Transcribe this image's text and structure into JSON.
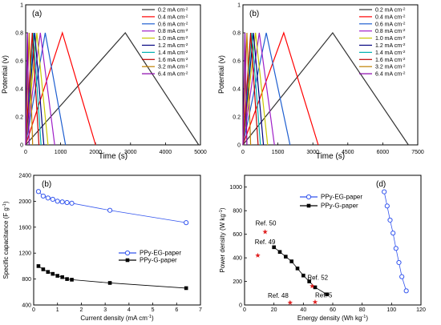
{
  "chart_data": [
    {
      "panel": "(a)",
      "type": "line",
      "xlabel": "Time (s)",
      "ylabel": "Potential (v)",
      "xlim": [
        0,
        5000
      ],
      "ylim": [
        0,
        1.0
      ],
      "xticks": [
        0,
        1000,
        2000,
        3000,
        4000,
        5000
      ],
      "yticks": [
        0.0,
        0.2,
        0.4,
        0.6,
        0.8,
        1.0
      ],
      "legend_position": "top-right",
      "series": [
        {
          "name": "0.2 mA cm",
          "color": "#333333",
          "x": [
            0,
            2850,
            4950
          ],
          "y": [
            0,
            0.8,
            0
          ]
        },
        {
          "name": "0.4 mA cm",
          "color": "#ff0000",
          "x": [
            0,
            1050,
            2000
          ],
          "y": [
            0,
            0.8,
            0
          ]
        },
        {
          "name": "0.6 mA cm",
          "color": "#1f5fd0",
          "x": [
            0,
            560,
            1140
          ],
          "y": [
            0,
            0.8,
            0
          ]
        },
        {
          "name": "0.8 mA cm",
          "color": "#a020c8",
          "x": [
            0,
            420,
            830
          ],
          "y": [
            0,
            0.8,
            0
          ]
        },
        {
          "name": "1.0 mA cm",
          "color": "#c8c800",
          "x": [
            0,
            320,
            640
          ],
          "y": [
            0,
            0.8,
            0
          ]
        },
        {
          "name": "1.2 mA cm",
          "color": "#000080",
          "x": [
            0,
            260,
            520
          ],
          "y": [
            0,
            0.8,
            0
          ]
        },
        {
          "name": "1.4 mA cm",
          "color": "#00b0b0",
          "x": [
            0,
            220,
            440
          ],
          "y": [
            0,
            0.8,
            0
          ]
        },
        {
          "name": "1.6 mA cm",
          "color": "#c00000",
          "x": [
            0,
            190,
            380
          ],
          "y": [
            0,
            0.8,
            0
          ]
        },
        {
          "name": "3.2 mA cm",
          "color": "#c08000",
          "x": [
            0,
            100,
            200
          ],
          "y": [
            0,
            0.8,
            0
          ]
        },
        {
          "name": "6.4 mA cm",
          "color": "#8800aa",
          "x": [
            0,
            50,
            100
          ],
          "y": [
            0,
            0.8,
            0
          ]
        }
      ]
    },
    {
      "panel": "(b)",
      "type": "line",
      "xlabel": "Time (s)",
      "ylabel": "Potential (v)",
      "xlim": [
        0,
        7500
      ],
      "ylim": [
        0,
        1.0
      ],
      "xticks": [
        0,
        1500,
        3000,
        4500,
        6000,
        7500
      ],
      "yticks": [
        0.0,
        0.2,
        0.4,
        0.6,
        0.8,
        1.0
      ],
      "legend_position": "top-right",
      "series": [
        {
          "name": "0.2 mA cm",
          "color": "#333333",
          "x": [
            0,
            3850,
            7100
          ],
          "y": [
            0,
            0.8,
            0
          ]
        },
        {
          "name": "0.4 mA cm",
          "color": "#ff0000",
          "x": [
            0,
            1750,
            3230
          ],
          "y": [
            0,
            0.8,
            0
          ]
        },
        {
          "name": "0.6 mA cm",
          "color": "#1f5fd0",
          "x": [
            0,
            1000,
            2020
          ],
          "y": [
            0,
            0.8,
            0
          ]
        },
        {
          "name": "0.8 mA cm",
          "color": "#a020c8",
          "x": [
            0,
            700,
            1350
          ],
          "y": [
            0,
            0.8,
            0
          ]
        },
        {
          "name": "1.0 mA cm",
          "color": "#c8c800",
          "x": [
            0,
            540,
            1060
          ],
          "y": [
            0,
            0.8,
            0
          ]
        },
        {
          "name": "1.2 mA cm",
          "color": "#000080",
          "x": [
            0,
            450,
            880
          ],
          "y": [
            0,
            0.8,
            0
          ]
        },
        {
          "name": "1.4 mA cm",
          "color": "#00b0b0",
          "x": [
            0,
            380,
            750
          ],
          "y": [
            0,
            0.8,
            0
          ]
        },
        {
          "name": "1.6 mA cm",
          "color": "#c00000",
          "x": [
            0,
            330,
            650
          ],
          "y": [
            0,
            0.8,
            0
          ]
        },
        {
          "name": "3.2 mA cm",
          "color": "#c08000",
          "x": [
            0,
            170,
            330
          ],
          "y": [
            0,
            0.8,
            0
          ]
        },
        {
          "name": "6.4 mA cm",
          "color": "#8800aa",
          "x": [
            0,
            85,
            170
          ],
          "y": [
            0,
            0.8,
            0
          ]
        }
      ]
    },
    {
      "panel": "(b)",
      "type": "line",
      "xlabel": "Current density (mA cm )",
      "ylabel": "Specific capacitance (F g )",
      "xlim": [
        0,
        7
      ],
      "ylim": [
        400,
        2400
      ],
      "xticks": [
        0,
        1,
        2,
        3,
        4,
        5,
        6,
        7
      ],
      "yticks": [
        400,
        800,
        1200,
        1600,
        2000,
        2400
      ],
      "legend_position": "center-right",
      "series": [
        {
          "name": "PPy-EG-paper",
          "color": "#3355ee",
          "marker": "circle",
          "x": [
            0.2,
            0.4,
            0.6,
            0.8,
            1.0,
            1.2,
            1.4,
            1.6,
            3.2,
            6.4
          ],
          "y": [
            2150,
            2080,
            2050,
            2030,
            2000,
            1990,
            1980,
            1970,
            1860,
            1670
          ]
        },
        {
          "name": "PPy-G-paper",
          "color": "#000000",
          "marker": "square",
          "x": [
            0.2,
            0.4,
            0.6,
            0.8,
            1.0,
            1.2,
            1.4,
            1.6,
            3.2,
            6.4
          ],
          "y": [
            1000,
            950,
            910,
            880,
            850,
            830,
            800,
            790,
            740,
            660
          ]
        }
      ]
    },
    {
      "panel": "(d)",
      "type": "scatter",
      "xlabel": "Energy density (Wh kg )",
      "ylabel": "Power density (W kg )",
      "xlim": [
        0,
        120
      ],
      "ylim": [
        0,
        1100
      ],
      "xticks": [
        0,
        20,
        40,
        60,
        80,
        100,
        120
      ],
      "yticks": [
        0,
        200,
        400,
        600,
        800,
        1000
      ],
      "legend_position": "top-left",
      "series": [
        {
          "name": "PPy-EG-paper",
          "color": "#3355ee",
          "marker": "circle",
          "x": [
            95,
            97,
            99,
            101,
            103,
            105,
            107,
            110
          ],
          "y": [
            960,
            840,
            720,
            610,
            480,
            360,
            240,
            120
          ]
        },
        {
          "name": "PPy-G-paper",
          "color": "#000000",
          "marker": "square",
          "x": [
            20,
            24,
            28,
            32,
            36,
            40,
            44,
            48,
            56
          ],
          "y": [
            490,
            450,
            410,
            370,
            310,
            250,
            200,
            150,
            90
          ]
        },
        {
          "name": "",
          "color": "#e02020",
          "marker": "star",
          "x": [
            14,
            9,
            46,
            31,
            48
          ],
          "y": [
            620,
            420,
            160,
            20,
            25
          ]
        }
      ],
      "annotations": [
        {
          "text": "Ref. 50",
          "x": 14,
          "y": 620
        },
        {
          "text": "Ref. 49",
          "x": 9,
          "y": 420
        },
        {
          "text": "Ref. 52",
          "x": 46,
          "y": 160
        },
        {
          "text": "Ref. 48",
          "x": 31,
          "y": 20
        },
        {
          "text": "Ref. 5",
          "x": 48,
          "y": 25
        }
      ]
    }
  ]
}
